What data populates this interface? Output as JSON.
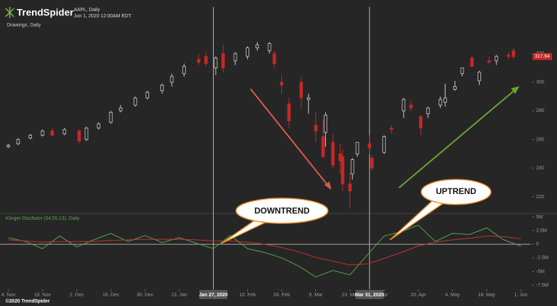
{
  "header": {
    "brand": "TrendSpider",
    "symbol": "AAPL, Daily",
    "timestamp": "Jun 1, 2020 12:00AM EDT",
    "drawings": "Drawings, Daily"
  },
  "annotations": {
    "downtrend": "DOWNTREND",
    "uptrend": "UPTREND"
  },
  "footer": "©2020 TrendSpider",
  "chart_data": [
    {
      "type": "candlestick",
      "title": "AAPL, Daily",
      "x": [
        "2019-11-04",
        "2019-11-08",
        "2019-11-13",
        "2019-11-18",
        "2019-11-22",
        "2019-11-27",
        "2019-12-03",
        "2019-12-06",
        "2019-12-11",
        "2019-12-16",
        "2019-12-20",
        "2019-12-26",
        "2019-12-31",
        "2020-01-06",
        "2020-01-10",
        "2020-01-15",
        "2020-01-21",
        "2020-01-24",
        "2020-01-28",
        "2020-01-31",
        "2020-02-05",
        "2020-02-10",
        "2020-02-14",
        "2020-02-19",
        "2020-02-21",
        "2020-02-24",
        "2020-02-27",
        "2020-03-03",
        "2020-03-06",
        "2020-03-09",
        "2020-03-12",
        "2020-03-13",
        "2020-03-16",
        "2020-03-19",
        "2020-03-20",
        "2020-03-23",
        "2020-03-24",
        "2020-03-26",
        "2020-03-31",
        "2020-04-01",
        "2020-04-06",
        "2020-04-09",
        "2020-04-14",
        "2020-04-17",
        "2020-04-21",
        "2020-04-24",
        "2020-04-29",
        "2020-05-01",
        "2020-05-05",
        "2020-05-08",
        "2020-05-12",
        "2020-05-15",
        "2020-05-19",
        "2020-05-22",
        "2020-05-27",
        "2020-05-29"
      ],
      "open": [
        255,
        257,
        261,
        263,
        266,
        264,
        266,
        260,
        268,
        272,
        280,
        284,
        289,
        294,
        300,
        306,
        316,
        318,
        310,
        320,
        315,
        318,
        324,
        322,
        320,
        300,
        285,
        300,
        288,
        270,
        262,
        265,
        258,
        250,
        248,
        229,
        236,
        250,
        257,
        247,
        251,
        268,
        280,
        284,
        276,
        278,
        284,
        286,
        295,
        306,
        317,
        301,
        315,
        315,
        319,
        322
      ],
      "high": [
        257,
        261,
        264,
        267,
        268,
        268,
        267,
        269,
        272,
        280,
        284,
        290,
        294,
        299,
        306,
        313,
        320,
        321,
        318,
        326,
        321,
        325,
        328,
        328,
        322,
        305,
        289,
        304,
        292,
        279,
        274,
        279,
        264,
        257,
        253,
        237,
        247,
        258,
        263,
        249,
        263,
        270,
        289,
        287,
        277,
        283,
        290,
        299,
        301,
        310,
        318,
        308,
        318,
        319,
        321,
        324
      ],
      "low": [
        254,
        256,
        260,
        262,
        262,
        263,
        257,
        259,
        267,
        271,
        279,
        283,
        288,
        292,
        297,
        304,
        312,
        311,
        305,
        307,
        312,
        316,
        322,
        320,
        310,
        292,
        268,
        282,
        278,
        258,
        247,
        255,
        240,
        236,
        224,
        212,
        232,
        248,
        250,
        238,
        250,
        264,
        275,
        280,
        263,
        275,
        282,
        283,
        294,
        304,
        311,
        298,
        313,
        312,
        316,
        316
      ],
      "close": [
        256,
        260,
        263,
        266,
        263,
        267,
        259,
        268,
        271,
        279,
        282,
        289,
        293,
        298,
        304,
        311,
        314,
        313,
        317,
        310,
        320,
        324,
        326,
        327,
        313,
        298,
        273,
        289,
        289,
        266,
        248,
        277,
        242,
        245,
        229,
        224,
        246,
        258,
        254,
        240,
        262,
        267,
        288,
        282,
        268,
        282,
        288,
        289,
        297,
        310,
        311,
        307,
        314,
        318,
        318,
        317.94
      ],
      "up_color": "#d0d0d0",
      "down_color": "#c62828",
      "xlim": [
        "2019-11-02",
        "2020-06-05"
      ],
      "ylim": [
        209.3,
        357.4
      ],
      "yticks": [
        220,
        240,
        260,
        280,
        300,
        320
      ],
      "xticks": [
        {
          "value": "2019-11-04",
          "label": "4. Nov"
        },
        {
          "value": "2019-11-18",
          "label": "18. Nov"
        },
        {
          "value": "2019-12-02",
          "label": "2. Dec"
        },
        {
          "value": "2019-12-16",
          "label": "16. Dec"
        },
        {
          "value": "2019-12-30",
          "label": "30. Dec"
        },
        {
          "value": "2020-01-13",
          "label": "13. Jan"
        },
        {
          "value": "2020-02-10",
          "label": "10. Feb"
        },
        {
          "value": "2020-02-24",
          "label": "24. Feb"
        },
        {
          "value": "2020-03-09",
          "label": "9. Mar"
        },
        {
          "value": "2020-03-23",
          "label": "23. Mar"
        },
        {
          "value": "2020-04-06",
          "label": "Apr"
        },
        {
          "value": "2020-04-20",
          "label": "20. Apr"
        },
        {
          "value": "2020-05-04",
          "label": "4. May"
        },
        {
          "value": "2020-05-18",
          "label": "18. May"
        },
        {
          "value": "2020-06-01",
          "label": "1. Jun"
        }
      ],
      "markers": [
        {
          "x": "2020-01-27",
          "label": "Jan 27, 2020"
        },
        {
          "x": "2020-03-31",
          "label": "Mar 31, 2020"
        }
      ]
    },
    {
      "type": "line",
      "title": "Klinger Oscillator (34,55,13), Daily",
      "x": [
        "2019-11-04",
        "2019-11-11",
        "2019-11-18",
        "2019-11-25",
        "2019-12-02",
        "2019-12-09",
        "2019-12-16",
        "2019-12-23",
        "2019-12-30",
        "2020-01-06",
        "2020-01-13",
        "2020-01-20",
        "2020-01-27",
        "2020-02-03",
        "2020-02-10",
        "2020-02-17",
        "2020-02-24",
        "2020-03-02",
        "2020-03-09",
        "2020-03-16",
        "2020-03-23",
        "2020-03-30",
        "2020-04-06",
        "2020-04-13",
        "2020-04-20",
        "2020-04-27",
        "2020-05-04",
        "2020-05-11",
        "2020-05-18",
        "2020-05-25",
        "2020-06-01"
      ],
      "series": [
        {
          "name": "Klinger",
          "color": "#5aa84a",
          "values": [
            1.2,
            0.5,
            -0.8,
            1.5,
            -0.5,
            0.8,
            2,
            0.5,
            1.6,
            0.3,
            1.2,
            0.2,
            -0.8,
            1.6,
            -0.8,
            -1.5,
            -2.5,
            -4,
            -6,
            -4.8,
            -5.6,
            -2,
            1.5,
            2.3,
            3.5,
            0.5,
            2,
            1.8,
            3,
            0.8,
            -0.3
          ]
        },
        {
          "name": "Signal",
          "color": "#c0392b",
          "values": [
            0.8,
            0.6,
            0.4,
            0.5,
            0.5,
            0.5,
            0.7,
            0.8,
            0.9,
            0.9,
            0.9,
            0.8,
            0.6,
            0.6,
            0.4,
            0,
            -0.6,
            -1.4,
            -2.4,
            -3.1,
            -3.8,
            -3.6,
            -2.6,
            -1.5,
            -0.3,
            0.4,
            0.8,
            1.1,
            1.5,
            1.4,
            1.0
          ]
        }
      ],
      "ylim": [
        -8.25,
        5.5
      ],
      "yticks": [
        {
          "value": 5,
          "label": "5M"
        },
        {
          "value": 2.5,
          "label": "2.5M"
        },
        0,
        {
          "value": -2.5,
          "label": "-2.5M"
        },
        {
          "value": -5,
          "label": "-5M"
        },
        {
          "value": -7.5,
          "label": "-7.5M"
        }
      ]
    }
  ]
}
